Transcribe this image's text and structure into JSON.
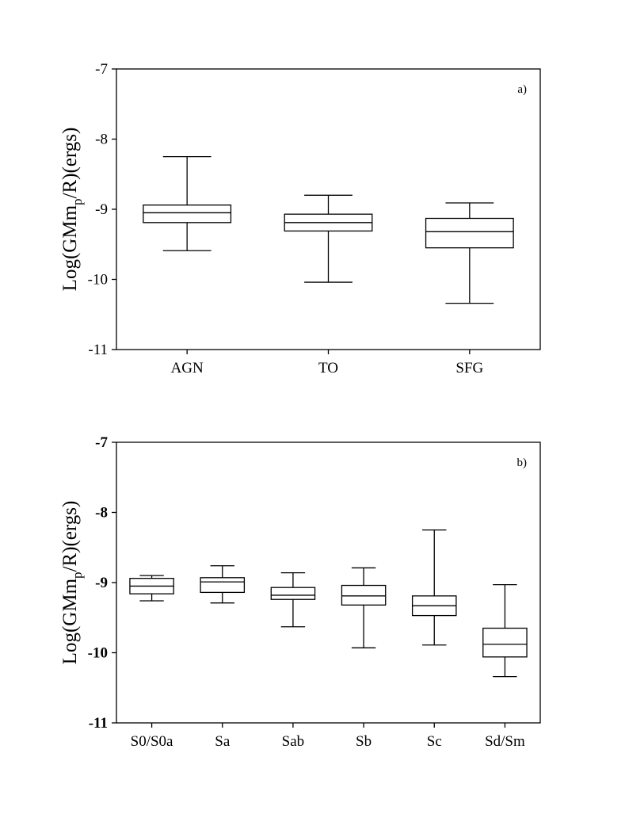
{
  "chart_data": [
    {
      "type": "box",
      "panel_label": "a)",
      "ylabel_parts": {
        "base": "Log(GMm",
        "sub": "p",
        "rest": "/R)(ergs)"
      },
      "ylim": [
        -11,
        -7
      ],
      "yticks": [
        -7,
        -8,
        -9,
        -10,
        -11
      ],
      "ytick_labels": [
        "-7",
        "-8",
        "-9",
        "-10",
        "-11"
      ],
      "bold_ticks": false,
      "grid": false,
      "categories": [
        "AGN",
        "TO",
        "SFG"
      ],
      "boxes": [
        {
          "whisker_high": -8.25,
          "q3": -8.94,
          "median": -9.05,
          "q1": -9.19,
          "whisker_low": -9.59
        },
        {
          "whisker_high": -8.8,
          "q3": -9.07,
          "median": -9.19,
          "q1": -9.31,
          "whisker_low": -10.04
        },
        {
          "whisker_high": -8.91,
          "q3": -9.13,
          "median": -9.32,
          "q1": -9.55,
          "whisker_low": -10.34
        }
      ]
    },
    {
      "type": "box",
      "panel_label": "b)",
      "ylabel_parts": {
        "base": "Log(GMm",
        "sub": "p",
        "rest": "/R)(ergs)"
      },
      "ylim": [
        -11,
        -7
      ],
      "yticks": [
        -7,
        -8,
        -9,
        -10,
        -11
      ],
      "ytick_labels": [
        "-7",
        "-8",
        "-9",
        "-10",
        "-11"
      ],
      "bold_ticks": true,
      "grid": false,
      "categories": [
        "S0/S0a",
        "Sa",
        "Sab",
        "Sb",
        "Sc",
        "Sd/Sm"
      ],
      "boxes": [
        {
          "whisker_high": -8.9,
          "q3": -8.94,
          "median": -9.05,
          "q1": -9.16,
          "whisker_low": -9.26
        },
        {
          "whisker_high": -8.76,
          "q3": -8.93,
          "median": -8.99,
          "q1": -9.14,
          "whisker_low": -9.29
        },
        {
          "whisker_high": -8.86,
          "q3": -9.07,
          "median": -9.18,
          "q1": -9.24,
          "whisker_low": -9.63
        },
        {
          "whisker_high": -8.79,
          "q3": -9.04,
          "median": -9.19,
          "q1": -9.32,
          "whisker_low": -9.93
        },
        {
          "whisker_high": -8.25,
          "q3": -9.19,
          "median": -9.33,
          "q1": -9.47,
          "whisker_low": -9.89
        },
        {
          "whisker_high": -9.03,
          "q3": -9.65,
          "median": -9.88,
          "q1": -10.06,
          "whisker_low": -10.34
        }
      ]
    }
  ]
}
